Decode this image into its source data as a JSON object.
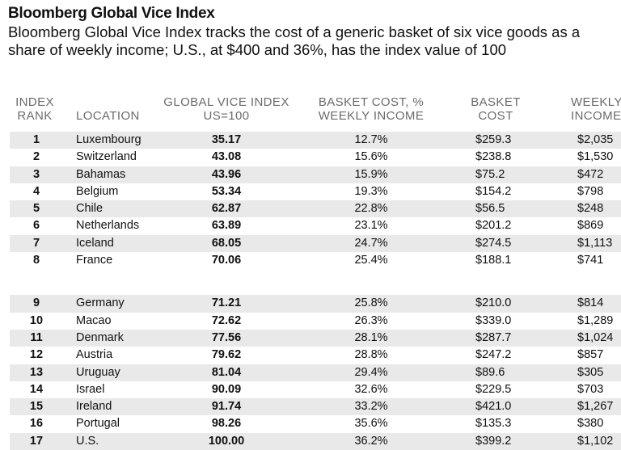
{
  "title": "Bloomberg Global Vice Index",
  "subtitle": "Bloomberg Global Vice Index tracks the cost of a generic basket of six vice goods as a share of weekly income; U.S., at $400 and 36%, has the index value of 100",
  "headers": {
    "rank_line1": "INDEX",
    "rank_line2": "RANK",
    "location": "LOCATION",
    "gvi_line1": "GLOBAL VICE INDEX",
    "gvi_line2": "US=100",
    "bc_line1": "BASKET COST, %",
    "bc_line2": "WEEKLY INCOME",
    "cost_line1": "BASKET",
    "cost_line2": "COST",
    "wi_line1": "WEEKLY",
    "wi_line2": "INCOME"
  },
  "rows": [
    {
      "rank": "1",
      "location": "Luxembourg",
      "gvi": "35.17",
      "pct": "12.7%",
      "cost": "$259.3",
      "income": "$2,035"
    },
    {
      "rank": "2",
      "location": "Switzerland",
      "gvi": "43.08",
      "pct": "15.6%",
      "cost": "$238.8",
      "income": "$1,530"
    },
    {
      "rank": "3",
      "location": "Bahamas",
      "gvi": "43.96",
      "pct": "15.9%",
      "cost": "$75.2",
      "income": "$472"
    },
    {
      "rank": "4",
      "location": "Belgium",
      "gvi": "53.34",
      "pct": "19.3%",
      "cost": "$154.2",
      "income": "$798"
    },
    {
      "rank": "5",
      "location": "Chile",
      "gvi": "62.87",
      "pct": "22.8%",
      "cost": "$56.5",
      "income": "$248"
    },
    {
      "rank": "6",
      "location": "Netherlands",
      "gvi": "63.89",
      "pct": "23.1%",
      "cost": "$201.2",
      "income": "$869"
    },
    {
      "rank": "7",
      "location": "Iceland",
      "gvi": "68.05",
      "pct": "24.7%",
      "cost": "$274.5",
      "income": "$1,113"
    },
    {
      "rank": "8",
      "location": "France",
      "gvi": "70.06",
      "pct": "25.4%",
      "cost": "$188.1",
      "income": "$741"
    },
    {
      "rank": "9",
      "location": "Germany",
      "gvi": "71.21",
      "pct": "25.8%",
      "cost": "$210.0",
      "income": "$814"
    },
    {
      "rank": "10",
      "location": "Macao",
      "gvi": "72.62",
      "pct": "26.3%",
      "cost": "$339.0",
      "income": "$1,289"
    },
    {
      "rank": "11",
      "location": "Denmark",
      "gvi": "77.56",
      "pct": "28.1%",
      "cost": "$287.7",
      "income": "$1,024"
    },
    {
      "rank": "12",
      "location": "Austria",
      "gvi": "79.62",
      "pct": "28.8%",
      "cost": "$247.2",
      "income": "$857"
    },
    {
      "rank": "13",
      "location": "Uruguay",
      "gvi": "81.04",
      "pct": "29.4%",
      "cost": "$89.6",
      "income": "$305"
    },
    {
      "rank": "14",
      "location": "Israel",
      "gvi": "90.09",
      "pct": "32.6%",
      "cost": "$229.5",
      "income": "$703"
    },
    {
      "rank": "15",
      "location": "Ireland",
      "gvi": "91.74",
      "pct": "33.2%",
      "cost": "$421.0",
      "income": "$1,267"
    },
    {
      "rank": "16",
      "location": "Portugal",
      "gvi": "98.26",
      "pct": "35.6%",
      "cost": "$135.3",
      "income": "$380"
    },
    {
      "rank": "17",
      "location": "U.S.",
      "gvi": "100.00",
      "pct": "36.2%",
      "cost": "$399.2",
      "income": "$1,102"
    }
  ],
  "colors": {
    "row_shade": "#e9e9e9",
    "header_text": "#6b6b6b",
    "body_text": "#111111"
  }
}
